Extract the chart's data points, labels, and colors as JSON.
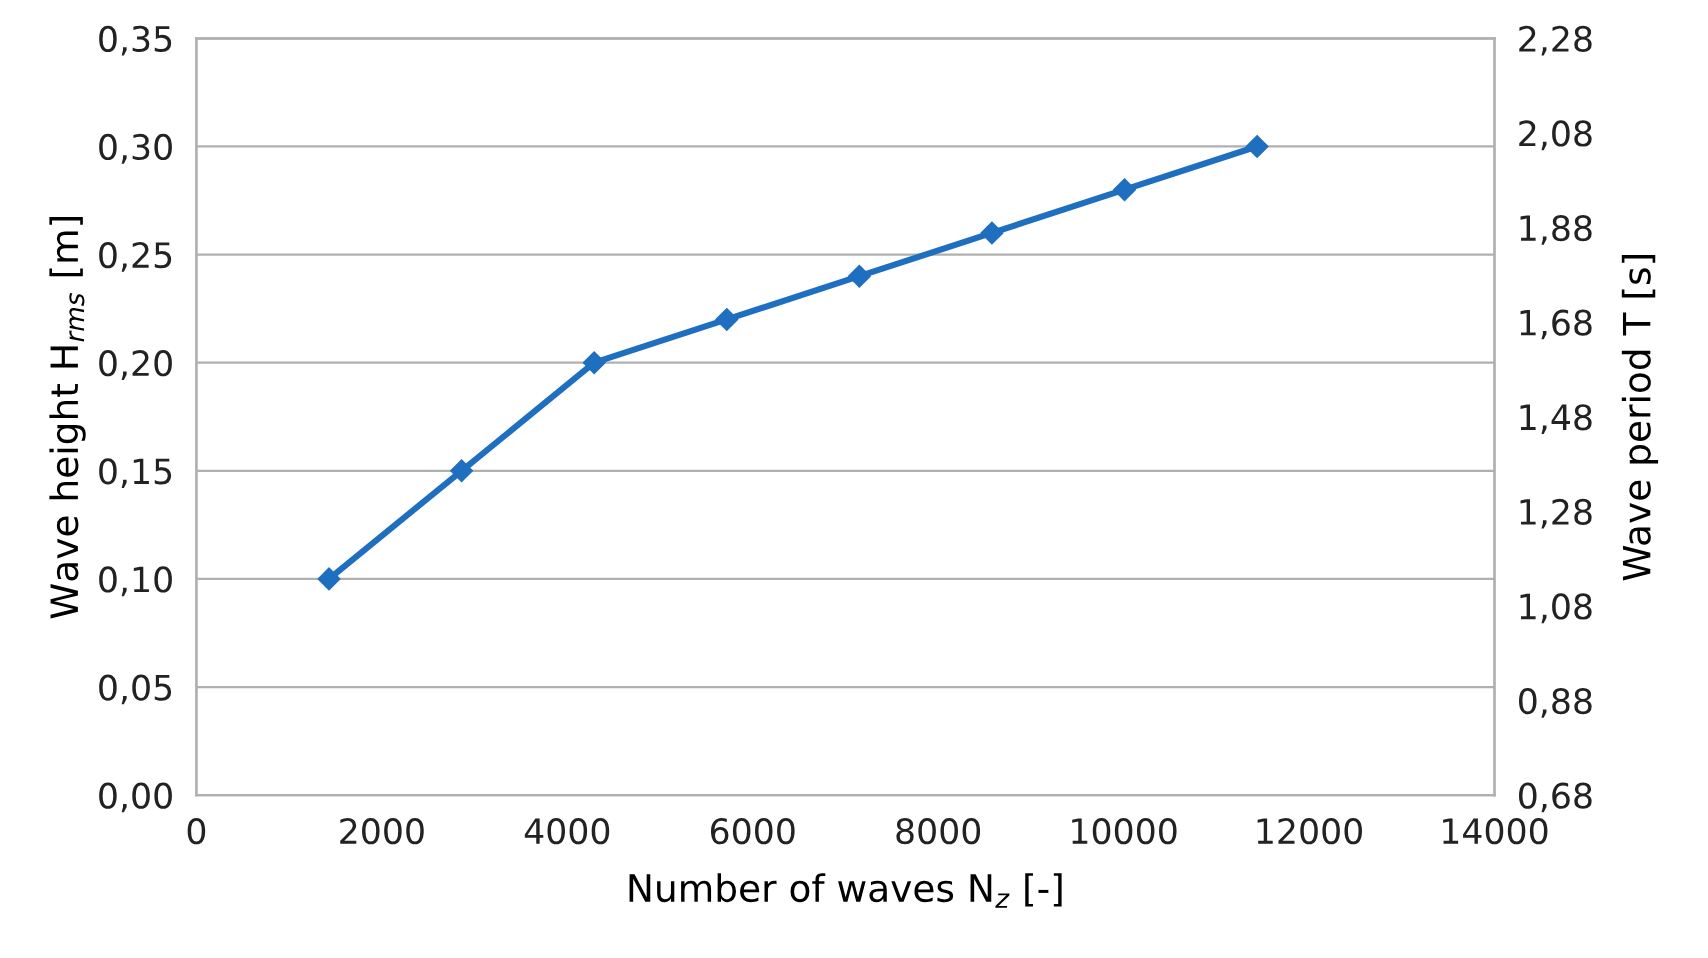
{
  "chart_data": {
    "type": "line",
    "xlabel": "Number of waves N$_{z}$ [-]",
    "ylabel": "Wave height H$_{rms}$ [m]",
    "y2label": "Wave period T [s]",
    "x": [
      1430,
      2860,
      4290,
      5720,
      7150,
      8580,
      10010,
      11440
    ],
    "series": [
      {
        "color": "#1f6fc0",
        "values": [
          0.1,
          0.15,
          0.2,
          0.22,
          0.24,
          0.26,
          0.28,
          0.3
        ]
      }
    ],
    "xlim": [
      0,
      14000
    ],
    "xticks": [
      0,
      2000,
      4000,
      6000,
      8000,
      10000,
      12000,
      14000
    ],
    "ylim": [
      0,
      0.35
    ],
    "yticks": [
      {
        "value": 0,
        "label": "0,00"
      },
      {
        "value": 0.05,
        "label": "0,05"
      },
      {
        "value": 0.1,
        "label": "0,10"
      },
      {
        "value": 0.15,
        "label": "0,15"
      },
      {
        "value": 0.2,
        "label": "0,20"
      },
      {
        "value": 0.25,
        "label": "0,25"
      },
      {
        "value": 0.3,
        "label": "0,30"
      },
      {
        "value": 0.35,
        "label": "0,35"
      }
    ],
    "y2lim": [
      0.68,
      2.28
    ],
    "y2ticks": [
      {
        "value": 0.68,
        "label": "0,68"
      },
      {
        "value": 0.88,
        "label": "0,88"
      },
      {
        "value": 1.08,
        "label": "1,08"
      },
      {
        "value": 1.28,
        "label": "1,28"
      },
      {
        "value": 1.48,
        "label": "1,48"
      },
      {
        "value": 1.68,
        "label": "1,68"
      },
      {
        "value": 1.88,
        "label": "1,88"
      },
      {
        "value": 2.08,
        "label": "2,08"
      },
      {
        "value": 2.28,
        "label": "2,28"
      }
    ],
    "grid": "y",
    "marker": "diamond",
    "line_style": "solid"
  }
}
